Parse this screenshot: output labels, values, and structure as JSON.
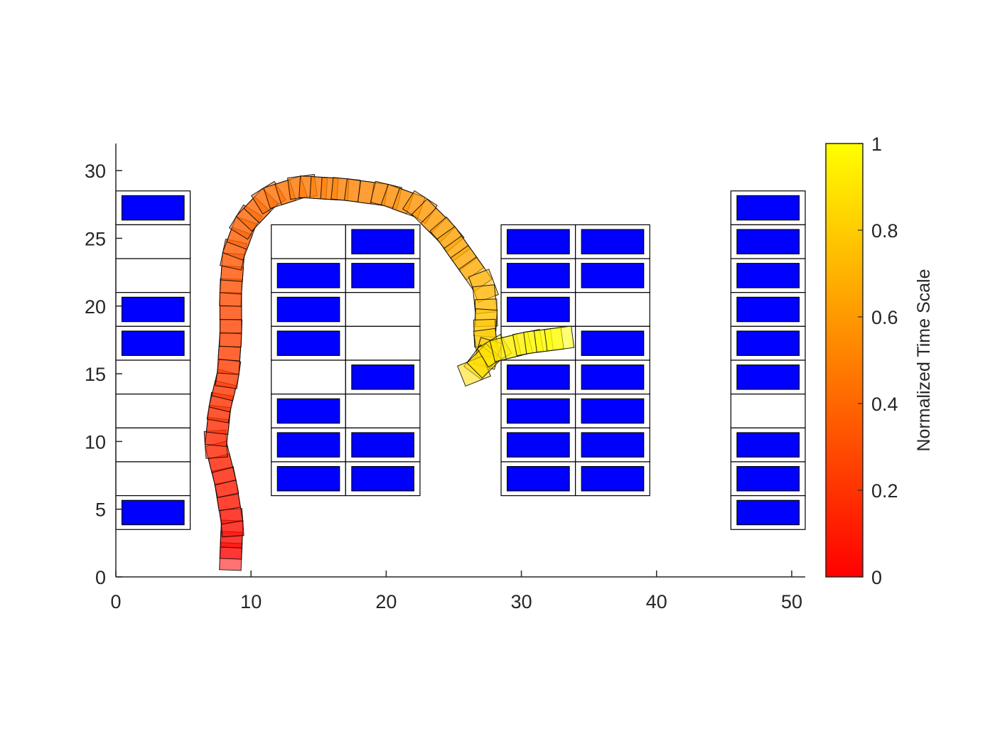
{
  "chart_data": {
    "type": "scatter",
    "title": "",
    "xlabel": "",
    "ylabel": "",
    "xlim": [
      0,
      51
    ],
    "ylim": [
      0,
      32
    ],
    "x_ticks": [
      0,
      10,
      20,
      30,
      40,
      50
    ],
    "y_ticks": [
      0,
      5,
      10,
      15,
      20,
      25,
      30
    ],
    "grid": false,
    "colorbar": {
      "label": "Normalized Time Scale",
      "range": [
        0,
        1
      ],
      "ticks": [
        0,
        0.2,
        0.4,
        0.6,
        0.8,
        1
      ],
      "tick_labels": [
        "0",
        "0.2",
        "0.4",
        "0.6",
        "0.8",
        "1"
      ],
      "colormap": "autumn",
      "color_low": "#ff0000",
      "color_high": "#ffff00"
    },
    "parking_slot_size": [
      5.5,
      2.5
    ],
    "parking_blocks": [
      {
        "x": 0,
        "slot_y_centers": [
          27.25,
          24.75,
          22.25,
          19.75,
          17.25,
          14.75,
          12.25,
          9.75,
          7.25,
          4.75
        ],
        "occupied": [
          true,
          false,
          false,
          true,
          true,
          false,
          false,
          false,
          false,
          true
        ]
      },
      {
        "x": 11.5,
        "slot_y_centers": [
          24.75,
          22.25,
          19.75,
          17.25,
          14.75,
          12.25,
          9.75,
          7.25
        ],
        "occupied": [
          false,
          true,
          true,
          true,
          false,
          true,
          true,
          true
        ]
      },
      {
        "x": 17.0,
        "slot_y_centers": [
          24.75,
          22.25,
          19.75,
          17.25,
          14.75,
          12.25,
          9.75,
          7.25
        ],
        "occupied": [
          true,
          true,
          false,
          false,
          true,
          false,
          true,
          true
        ]
      },
      {
        "x": 28.5,
        "slot_y_centers": [
          24.75,
          22.25,
          19.75,
          17.25,
          14.75,
          12.25,
          9.75,
          7.25
        ],
        "occupied": [
          true,
          true,
          true,
          false,
          true,
          true,
          true,
          true
        ]
      },
      {
        "x": 34.0,
        "slot_y_centers": [
          24.75,
          22.25,
          19.75,
          17.25,
          14.75,
          12.25,
          9.75,
          7.25
        ],
        "occupied": [
          true,
          true,
          false,
          true,
          true,
          true,
          true,
          true
        ]
      },
      {
        "x": 45.5,
        "slot_y_centers": [
          27.25,
          24.75,
          22.25,
          19.75,
          17.25,
          14.75,
          12.25,
          9.75,
          7.25,
          4.75
        ],
        "occupied": [
          true,
          true,
          true,
          true,
          true,
          true,
          false,
          true,
          true,
          true
        ]
      }
    ],
    "parked_car_color": "#0000ff",
    "vehicle_size": [
      2.0,
      1.6
    ],
    "trajectory_waypoints": [
      {
        "t": 0.0,
        "x": 8.5,
        "y": 1.5
      },
      {
        "t": 0.05,
        "x": 8.6,
        "y": 4.0
      },
      {
        "t": 0.1,
        "x": 8.1,
        "y": 7.0
      },
      {
        "t": 0.14,
        "x": 7.4,
        "y": 9.8
      },
      {
        "t": 0.18,
        "x": 7.7,
        "y": 12.5
      },
      {
        "t": 0.22,
        "x": 8.3,
        "y": 15.0
      },
      {
        "t": 0.26,
        "x": 8.5,
        "y": 18.0
      },
      {
        "t": 0.3,
        "x": 8.5,
        "y": 21.0
      },
      {
        "t": 0.34,
        "x": 8.7,
        "y": 23.8
      },
      {
        "t": 0.38,
        "x": 9.6,
        "y": 26.2
      },
      {
        "t": 0.42,
        "x": 11.3,
        "y": 28.0
      },
      {
        "t": 0.46,
        "x": 13.8,
        "y": 28.8
      },
      {
        "t": 0.5,
        "x": 17.0,
        "y": 28.6
      },
      {
        "t": 0.54,
        "x": 20.0,
        "y": 28.2
      },
      {
        "t": 0.58,
        "x": 22.5,
        "y": 27.3
      },
      {
        "t": 0.62,
        "x": 24.5,
        "y": 25.3
      },
      {
        "t": 0.66,
        "x": 26.0,
        "y": 23.2
      },
      {
        "t": 0.7,
        "x": 27.2,
        "y": 21.5
      },
      {
        "t": 0.74,
        "x": 27.4,
        "y": 19.5
      },
      {
        "t": 0.78,
        "x": 27.3,
        "y": 18.0
      },
      {
        "t": 0.82,
        "x": 27.5,
        "y": 16.5
      },
      {
        "t": 0.86,
        "x": 26.5,
        "y": 15.2
      },
      {
        "t": 0.9,
        "x": 28.0,
        "y": 16.7
      },
      {
        "t": 0.95,
        "x": 30.5,
        "y": 17.3
      },
      {
        "t": 1.0,
        "x": 32.8,
        "y": 17.6
      }
    ]
  }
}
